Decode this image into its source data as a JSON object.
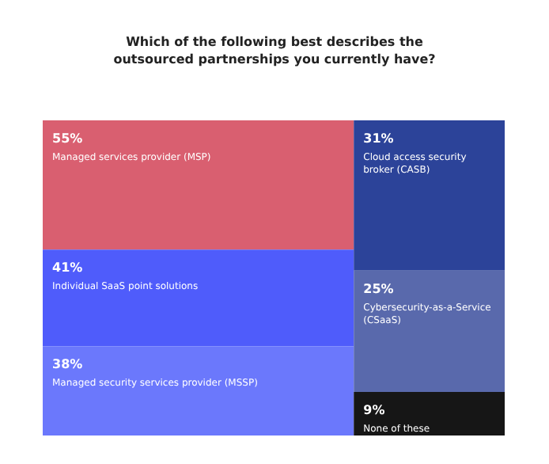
{
  "chart_data": {
    "type": "other",
    "title": "Which of the following best describes the outsourced partnerships you currently have?",
    "categories": [
      "Managed services provider (MSP)",
      "Individual SaaS point solutions",
      "Managed security services provider (MSSP)",
      "Cloud access security broker (CASB)",
      "Cybersecurity-as-a-Service (CSaaS)",
      "None of these"
    ],
    "values": [
      55,
      41,
      38,
      31,
      25,
      9
    ],
    "value_labels": [
      "55%",
      "41%",
      "38%",
      "31%",
      "25%",
      "9%"
    ],
    "colors": [
      "#d95f70",
      "#4f5cfb",
      "#6b78fc",
      "#2c4399",
      "#5969ac",
      "#161616"
    ]
  }
}
